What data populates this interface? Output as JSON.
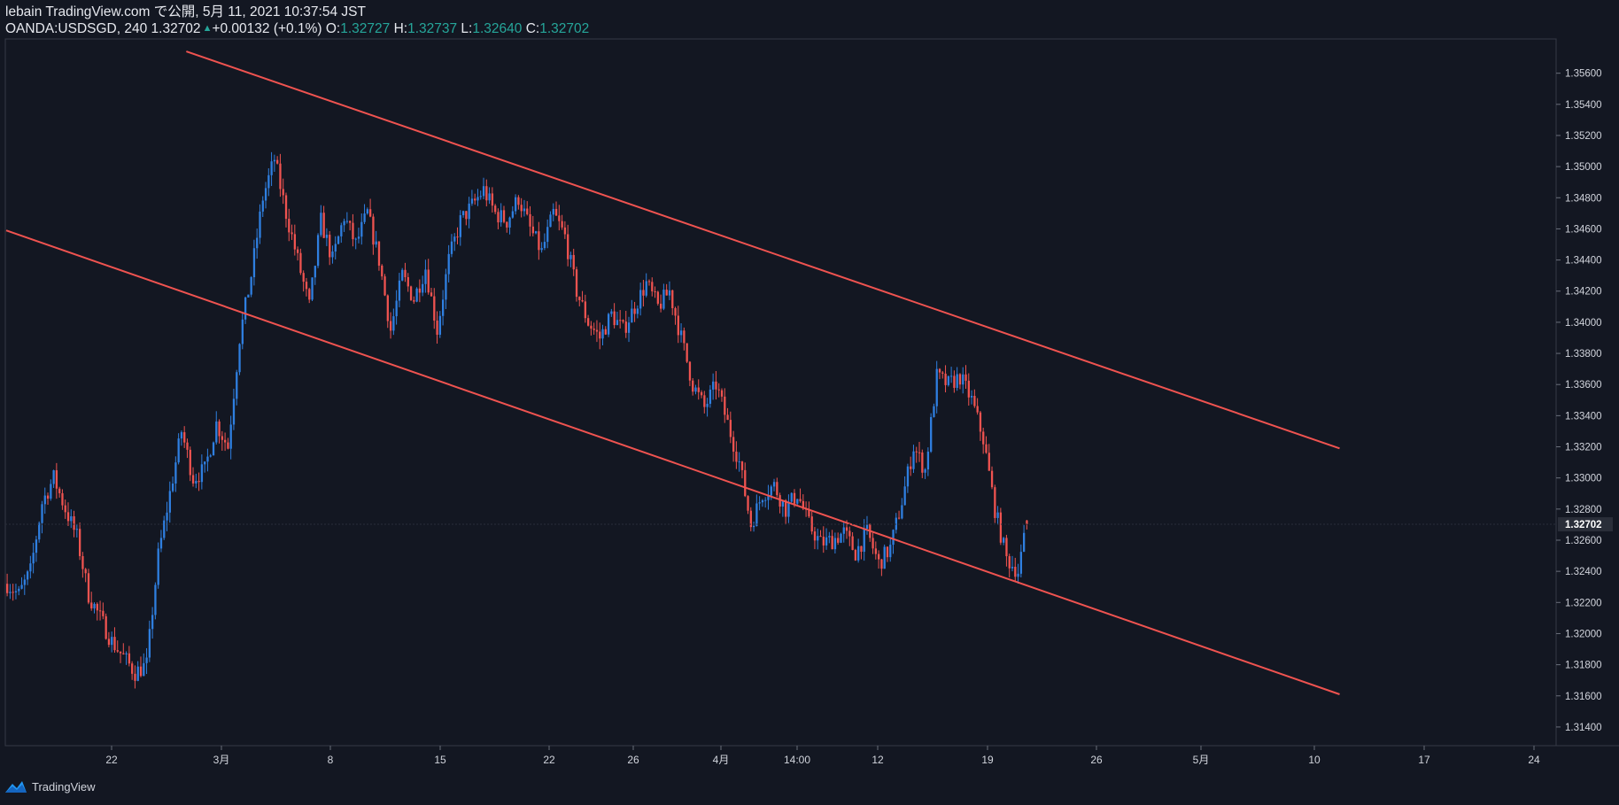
{
  "header": {
    "line1": "lebain TradingView.com で公開, 5月 11, 2021 10:37:54 JST",
    "symbol": "OANDA:USDSGD, 240 1.32702",
    "change": "+0.00132 (+0.1%)",
    "o_label": "O:",
    "o_value": "1.32727",
    "h_label": "H:",
    "h_value": "1.32737",
    "l_label": "L:",
    "l_value": "1.32640",
    "c_label": "C:",
    "c_value": "1.32702"
  },
  "footer": {
    "brand": "TradingView"
  },
  "colors": {
    "background": "#131722",
    "up": "#2f7fe0",
    "down": "#ef5350",
    "trendline": "#ef5350",
    "text": "#d1d4dc",
    "accent": "#26a69a"
  },
  "chart_data": {
    "type": "candlestick",
    "symbol": "OANDA:USDSGD",
    "interval": "240",
    "x_tick_labels": [
      "22",
      "3月",
      "8",
      "15",
      "22",
      "26",
      "4月",
      "14:00",
      "12",
      "19",
      "26",
      "5月",
      "10",
      "17",
      "24"
    ],
    "y_tick_labels": [
      "1.35600",
      "1.35400",
      "1.35200",
      "1.35000",
      "1.34800",
      "1.34600",
      "1.34400",
      "1.34200",
      "1.34000",
      "1.33800",
      "1.33600",
      "1.33400",
      "1.33200",
      "1.33000",
      "1.32800",
      "1.32600",
      "1.32400",
      "1.32200",
      "1.32000",
      "1.31800",
      "1.31600",
      "1.31400"
    ],
    "ylim": [
      1.3128,
      1.3582
    ],
    "last_price": 1.32702,
    "last_price_label": "1.32702",
    "grid": false,
    "close_path": [
      [
        0,
        1.3232
      ],
      [
        4,
        1.3225
      ],
      [
        8,
        1.324
      ],
      [
        12,
        1.3284
      ],
      [
        16,
        1.33
      ],
      [
        20,
        1.328
      ],
      [
        24,
        1.3262
      ],
      [
        28,
        1.3225
      ],
      [
        32,
        1.321
      ],
      [
        36,
        1.3195
      ],
      [
        40,
        1.3185
      ],
      [
        44,
        1.3175
      ],
      [
        48,
        1.318
      ],
      [
        52,
        1.325
      ],
      [
        56,
        1.329
      ],
      [
        60,
        1.333
      ],
      [
        64,
        1.33
      ],
      [
        68,
        1.3305
      ],
      [
        72,
        1.3335
      ],
      [
        76,
        1.332
      ],
      [
        80,
        1.339
      ],
      [
        84,
        1.343
      ],
      [
        88,
        1.348
      ],
      [
        92,
        1.3505
      ],
      [
        96,
        1.347
      ],
      [
        100,
        1.344
      ],
      [
        104,
        1.341
      ],
      [
        108,
        1.3465
      ],
      [
        112,
        1.344
      ],
      [
        116,
        1.3468
      ],
      [
        120,
        1.345
      ],
      [
        124,
        1.347
      ],
      [
        128,
        1.344
      ],
      [
        132,
        1.3395
      ],
      [
        136,
        1.343
      ],
      [
        140,
        1.3415
      ],
      [
        144,
        1.3435
      ],
      [
        148,
        1.3395
      ],
      [
        152,
        1.344
      ],
      [
        156,
        1.3465
      ],
      [
        160,
        1.3475
      ],
      [
        164,
        1.3485
      ],
      [
        168,
        1.347
      ],
      [
        172,
        1.3465
      ],
      [
        176,
        1.348
      ],
      [
        180,
        1.346
      ],
      [
        184,
        1.3445
      ],
      [
        188,
        1.347
      ],
      [
        192,
        1.3455
      ],
      [
        196,
        1.342
      ],
      [
        200,
        1.34
      ],
      [
        204,
        1.339
      ],
      [
        208,
        1.3405
      ],
      [
        212,
        1.3395
      ],
      [
        216,
        1.341
      ],
      [
        220,
        1.3425
      ],
      [
        224,
        1.341
      ],
      [
        228,
        1.342
      ],
      [
        232,
        1.339
      ],
      [
        236,
        1.336
      ],
      [
        240,
        1.3345
      ],
      [
        244,
        1.336
      ],
      [
        248,
        1.3335
      ],
      [
        252,
        1.331
      ],
      [
        256,
        1.327
      ],
      [
        260,
        1.329
      ],
      [
        264,
        1.3295
      ],
      [
        268,
        1.328
      ],
      [
        272,
        1.329
      ],
      [
        276,
        1.327
      ],
      [
        280,
        1.3258
      ],
      [
        284,
        1.326
      ],
      [
        288,
        1.3265
      ],
      [
        292,
        1.3252
      ],
      [
        296,
        1.3265
      ],
      [
        300,
        1.3245
      ],
      [
        304,
        1.3255
      ],
      [
        308,
        1.3285
      ],
      [
        312,
        1.332
      ],
      [
        316,
        1.3305
      ],
      [
        320,
        1.3365
      ],
      [
        324,
        1.336
      ],
      [
        328,
        1.3365
      ],
      [
        332,
        1.335
      ],
      [
        336,
        1.3325
      ],
      [
        340,
        1.328
      ],
      [
        344,
        1.3248
      ],
      [
        348,
        1.324
      ],
      [
        351,
        1.327
      ]
    ],
    "trendlines": [
      {
        "from": {
          "bar": 62,
          "price": 1.3574
        },
        "to": {
          "bar": 459,
          "price": 1.3319
        }
      },
      {
        "from": {
          "bar": 0,
          "price": 1.3459
        },
        "to": {
          "bar": 459,
          "price": 1.3161
        }
      }
    ]
  }
}
